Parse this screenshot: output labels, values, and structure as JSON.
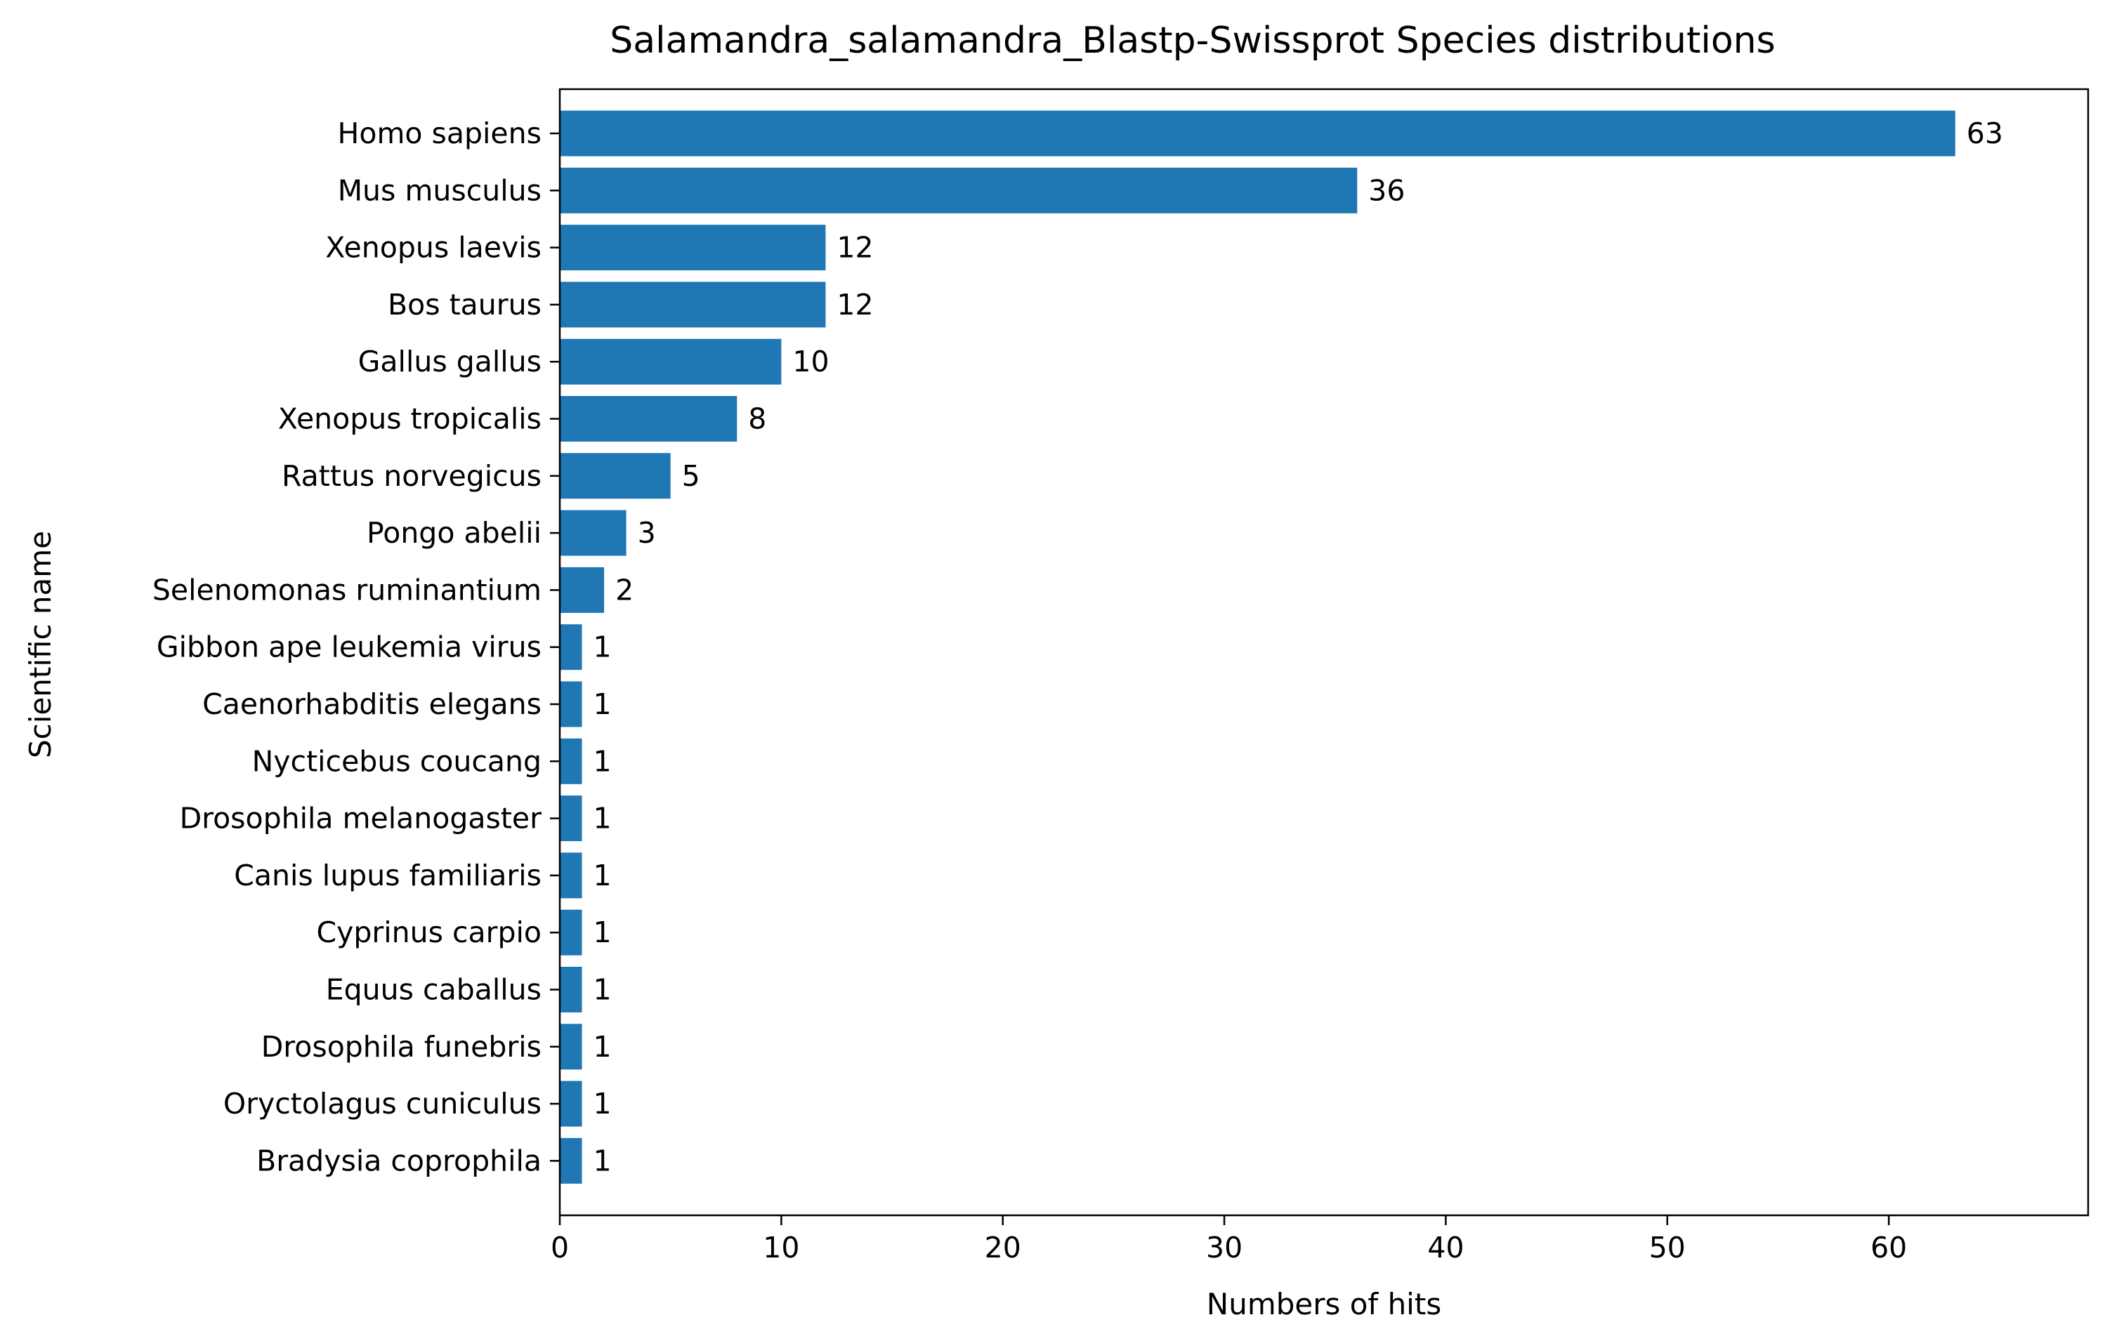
{
  "chart_data": {
    "type": "bar",
    "orientation": "horizontal",
    "title": "Salamandra_salamandra_Blastp-Swissprot Species distributions",
    "xlabel": "Numbers of hits",
    "ylabel": "Scientific name",
    "xlim": [
      0,
      69
    ],
    "xticks": [
      0,
      10,
      20,
      30,
      40,
      50,
      60
    ],
    "grid": false,
    "bar_color": "#1f77b4",
    "categories": [
      "Homo sapiens",
      "Mus musculus",
      "Xenopus laevis",
      "Bos taurus",
      "Gallus gallus",
      "Xenopus tropicalis",
      "Rattus norvegicus",
      "Pongo abelii",
      "Selenomonas ruminantium",
      "Gibbon ape leukemia virus",
      "Caenorhabditis elegans",
      "Nycticebus coucang",
      "Drosophila melanogaster",
      "Canis lupus familiaris",
      "Cyprinus carpio",
      "Equus caballus",
      "Drosophila funebris",
      "Oryctolagus cuniculus",
      "Bradysia coprophila"
    ],
    "values": [
      63,
      36,
      12,
      12,
      10,
      8,
      5,
      3,
      2,
      1,
      1,
      1,
      1,
      1,
      1,
      1,
      1,
      1,
      1
    ]
  }
}
